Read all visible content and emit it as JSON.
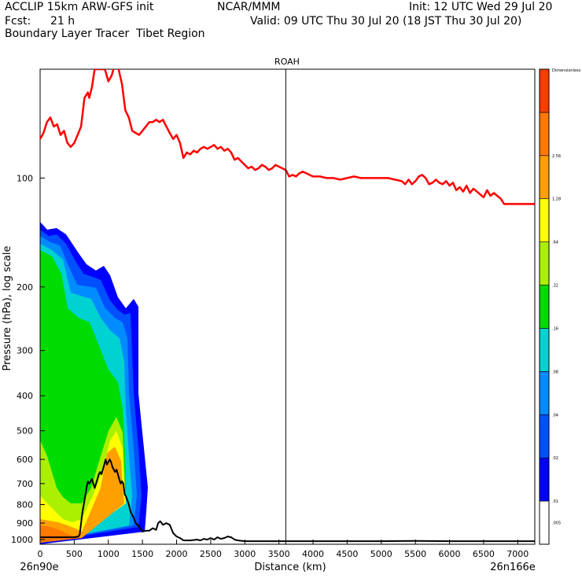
{
  "header": {
    "title_left": "ACCLIP 15km ARW-GFS init",
    "org": "NCAR/MMM",
    "init": "Init: 12 UTC Wed 29 Jul 20",
    "fcst_label": "Fcst:",
    "fcst_value": "21 h",
    "valid": "Valid: 09 UTC Thu 30 Jul 20 (18 JST Thu 30 Jul 20)",
    "subtitle": "Boundary Layer Tracer  Tibet Region"
  },
  "chart_data": {
    "type": "heatmap",
    "title": "ROAH",
    "xlabel": "Distance (km)",
    "ylabel": "Pressure (hPa), log scale",
    "x_start_label": "26n90e",
    "x_end_label": "26n166e",
    "xlim": [
      0,
      7250
    ],
    "ylim": [
      1030,
      50
    ],
    "y_scale": "log",
    "x_ticks": [
      0,
      500,
      1000,
      1500,
      2000,
      2500,
      3000,
      3500,
      4000,
      4500,
      5000,
      5500,
      6000,
      6500,
      7000
    ],
    "y_ticks": [
      100,
      200,
      300,
      400,
      500,
      600,
      700,
      800,
      900,
      1000
    ],
    "marker_line_x": 3600,
    "colorbar": {
      "title": "Dimensionless",
      "levels": [
        ".005",
        ".01",
        ".02",
        ".04",
        ".08",
        ".16",
        ".32",
        ".64",
        "1.28",
        "2.56"
      ],
      "colors": [
        "#ffffff",
        "#0000ff",
        "#0050ff",
        "#008cff",
        "#00d2d2",
        "#00dc00",
        "#aaf000",
        "#ffff00",
        "#ffa000",
        "#ff7800",
        "#ff3c00"
      ]
    },
    "series": [
      {
        "name": "tropopause",
        "color": "#ff0000",
        "points": [
          [
            0,
            78
          ],
          [
            50,
            75
          ],
          [
            100,
            70
          ],
          [
            150,
            68
          ],
          [
            200,
            72
          ],
          [
            250,
            71
          ],
          [
            300,
            76
          ],
          [
            350,
            74
          ],
          [
            400,
            80
          ],
          [
            450,
            82
          ],
          [
            500,
            80
          ],
          [
            550,
            76
          ],
          [
            600,
            72
          ],
          [
            650,
            60
          ],
          [
            700,
            58
          ],
          [
            720,
            60
          ],
          [
            760,
            56
          ],
          [
            800,
            50
          ],
          [
            900,
            50
          ],
          [
            950,
            50
          ],
          [
            1000,
            54
          ],
          [
            1050,
            52
          ],
          [
            1100,
            48
          ],
          [
            1150,
            50
          ],
          [
            1200,
            55
          ],
          [
            1250,
            65
          ],
          [
            1300,
            68
          ],
          [
            1350,
            74
          ],
          [
            1400,
            75
          ],
          [
            1450,
            76
          ],
          [
            1500,
            74
          ],
          [
            1550,
            72
          ],
          [
            1600,
            70
          ],
          [
            1650,
            70
          ],
          [
            1700,
            69
          ],
          [
            1750,
            70
          ],
          [
            1800,
            69
          ],
          [
            1850,
            72
          ],
          [
            1900,
            75
          ],
          [
            1950,
            78
          ],
          [
            2000,
            76
          ],
          [
            2050,
            80
          ],
          [
            2100,
            88
          ],
          [
            2150,
            85
          ],
          [
            2200,
            86
          ],
          [
            2250,
            84
          ],
          [
            2300,
            85
          ],
          [
            2350,
            83
          ],
          [
            2400,
            82
          ],
          [
            2450,
            83
          ],
          [
            2500,
            82
          ],
          [
            2550,
            81
          ],
          [
            2600,
            83
          ],
          [
            2650,
            82
          ],
          [
            2700,
            84
          ],
          [
            2750,
            83
          ],
          [
            2800,
            85
          ],
          [
            2850,
            89
          ],
          [
            2900,
            88
          ],
          [
            2950,
            90
          ],
          [
            3000,
            92
          ],
          [
            3050,
            94
          ],
          [
            3100,
            93
          ],
          [
            3150,
            95
          ],
          [
            3200,
            94
          ],
          [
            3250,
            92
          ],
          [
            3300,
            93
          ],
          [
            3350,
            95
          ],
          [
            3400,
            94
          ],
          [
            3450,
            92
          ],
          [
            3500,
            93
          ],
          [
            3550,
            94
          ],
          [
            3600,
            95
          ],
          [
            3650,
            99
          ],
          [
            3700,
            98
          ],
          [
            3750,
            99
          ],
          [
            3800,
            97
          ],
          [
            3850,
            96
          ],
          [
            3900,
            97
          ],
          [
            3950,
            98
          ],
          [
            4000,
            99
          ],
          [
            4100,
            99
          ],
          [
            4200,
            100
          ],
          [
            4300,
            100
          ],
          [
            4400,
            101
          ],
          [
            4500,
            100
          ],
          [
            4600,
            99
          ],
          [
            4700,
            100
          ],
          [
            4800,
            100
          ],
          [
            4900,
            100
          ],
          [
            5000,
            100
          ],
          [
            5100,
            100
          ],
          [
            5200,
            101
          ],
          [
            5300,
            102
          ],
          [
            5350,
            104
          ],
          [
            5400,
            101
          ],
          [
            5450,
            104
          ],
          [
            5500,
            102
          ],
          [
            5550,
            99
          ],
          [
            5600,
            98
          ],
          [
            5650,
            100
          ],
          [
            5700,
            104
          ],
          [
            5750,
            103
          ],
          [
            5800,
            101
          ],
          [
            5850,
            103
          ],
          [
            5900,
            104
          ],
          [
            5950,
            102
          ],
          [
            6000,
            105
          ],
          [
            6050,
            103
          ],
          [
            6100,
            108
          ],
          [
            6150,
            106
          ],
          [
            6200,
            109
          ],
          [
            6250,
            105
          ],
          [
            6300,
            110
          ],
          [
            6350,
            107
          ],
          [
            6400,
            109
          ],
          [
            6450,
            111
          ],
          [
            6500,
            113
          ],
          [
            6550,
            108
          ],
          [
            6600,
            112
          ],
          [
            6650,
            110
          ],
          [
            6700,
            112
          ],
          [
            6750,
            114
          ],
          [
            6800,
            118
          ],
          [
            6900,
            118
          ],
          [
            7000,
            118
          ],
          [
            7100,
            118
          ],
          [
            7250,
            118
          ]
        ]
      },
      {
        "name": "terrain",
        "color": "#000000",
        "points": [
          [
            0,
            985
          ],
          [
            100,
            985
          ],
          [
            200,
            985
          ],
          [
            300,
            985
          ],
          [
            400,
            985
          ],
          [
            500,
            985
          ],
          [
            560,
            980
          ],
          [
            580,
            970
          ],
          [
            600,
            900
          ],
          [
            620,
            840
          ],
          [
            650,
            780
          ],
          [
            680,
            720
          ],
          [
            700,
            690
          ],
          [
            720,
            700
          ],
          [
            740,
            690
          ],
          [
            760,
            680
          ],
          [
            780,
            700
          ],
          [
            800,
            720
          ],
          [
            820,
            700
          ],
          [
            840,
            680
          ],
          [
            860,
            660
          ],
          [
            880,
            650
          ],
          [
            900,
            660
          ],
          [
            920,
            640
          ],
          [
            940,
            620
          ],
          [
            960,
            600
          ],
          [
            980,
            620
          ],
          [
            1000,
            610
          ],
          [
            1020,
            600
          ],
          [
            1040,
            610
          ],
          [
            1060,
            630
          ],
          [
            1080,
            640
          ],
          [
            1100,
            650
          ],
          [
            1120,
            640
          ],
          [
            1140,
            660
          ],
          [
            1160,
            680
          ],
          [
            1180,
            700
          ],
          [
            1200,
            690
          ],
          [
            1220,
            700
          ],
          [
            1240,
            750
          ],
          [
            1260,
            760
          ],
          [
            1280,
            780
          ],
          [
            1300,
            800
          ],
          [
            1320,
            830
          ],
          [
            1340,
            850
          ],
          [
            1360,
            860
          ],
          [
            1380,
            880
          ],
          [
            1400,
            900
          ],
          [
            1450,
            920
          ],
          [
            1500,
            950
          ],
          [
            1550,
            945
          ],
          [
            1600,
            945
          ],
          [
            1650,
            930
          ],
          [
            1700,
            940
          ],
          [
            1730,
            900
          ],
          [
            1760,
            890
          ],
          [
            1800,
            910
          ],
          [
            1850,
            900
          ],
          [
            1900,
            910
          ],
          [
            1950,
            960
          ],
          [
            2000,
            980
          ],
          [
            2050,
            990
          ],
          [
            2100,
            1005
          ],
          [
            2200,
            1005
          ],
          [
            2300,
            1000
          ],
          [
            2350,
            1005
          ],
          [
            2400,
            995
          ],
          [
            2450,
            1000
          ],
          [
            2500,
            990
          ],
          [
            2550,
            1000
          ],
          [
            2600,
            985
          ],
          [
            2650,
            995
          ],
          [
            2700,
            990
          ],
          [
            2750,
            980
          ],
          [
            2800,
            985
          ],
          [
            2850,
            1000
          ],
          [
            2900,
            1005
          ],
          [
            3000,
            1010
          ],
          [
            3500,
            1010
          ],
          [
            4000,
            1010
          ],
          [
            4500,
            1010
          ],
          [
            5000,
            1010
          ],
          [
            5500,
            1008
          ],
          [
            6000,
            1010
          ],
          [
            6500,
            1010
          ],
          [
            7000,
            1010
          ],
          [
            7250,
            1010
          ]
        ]
      }
    ]
  }
}
